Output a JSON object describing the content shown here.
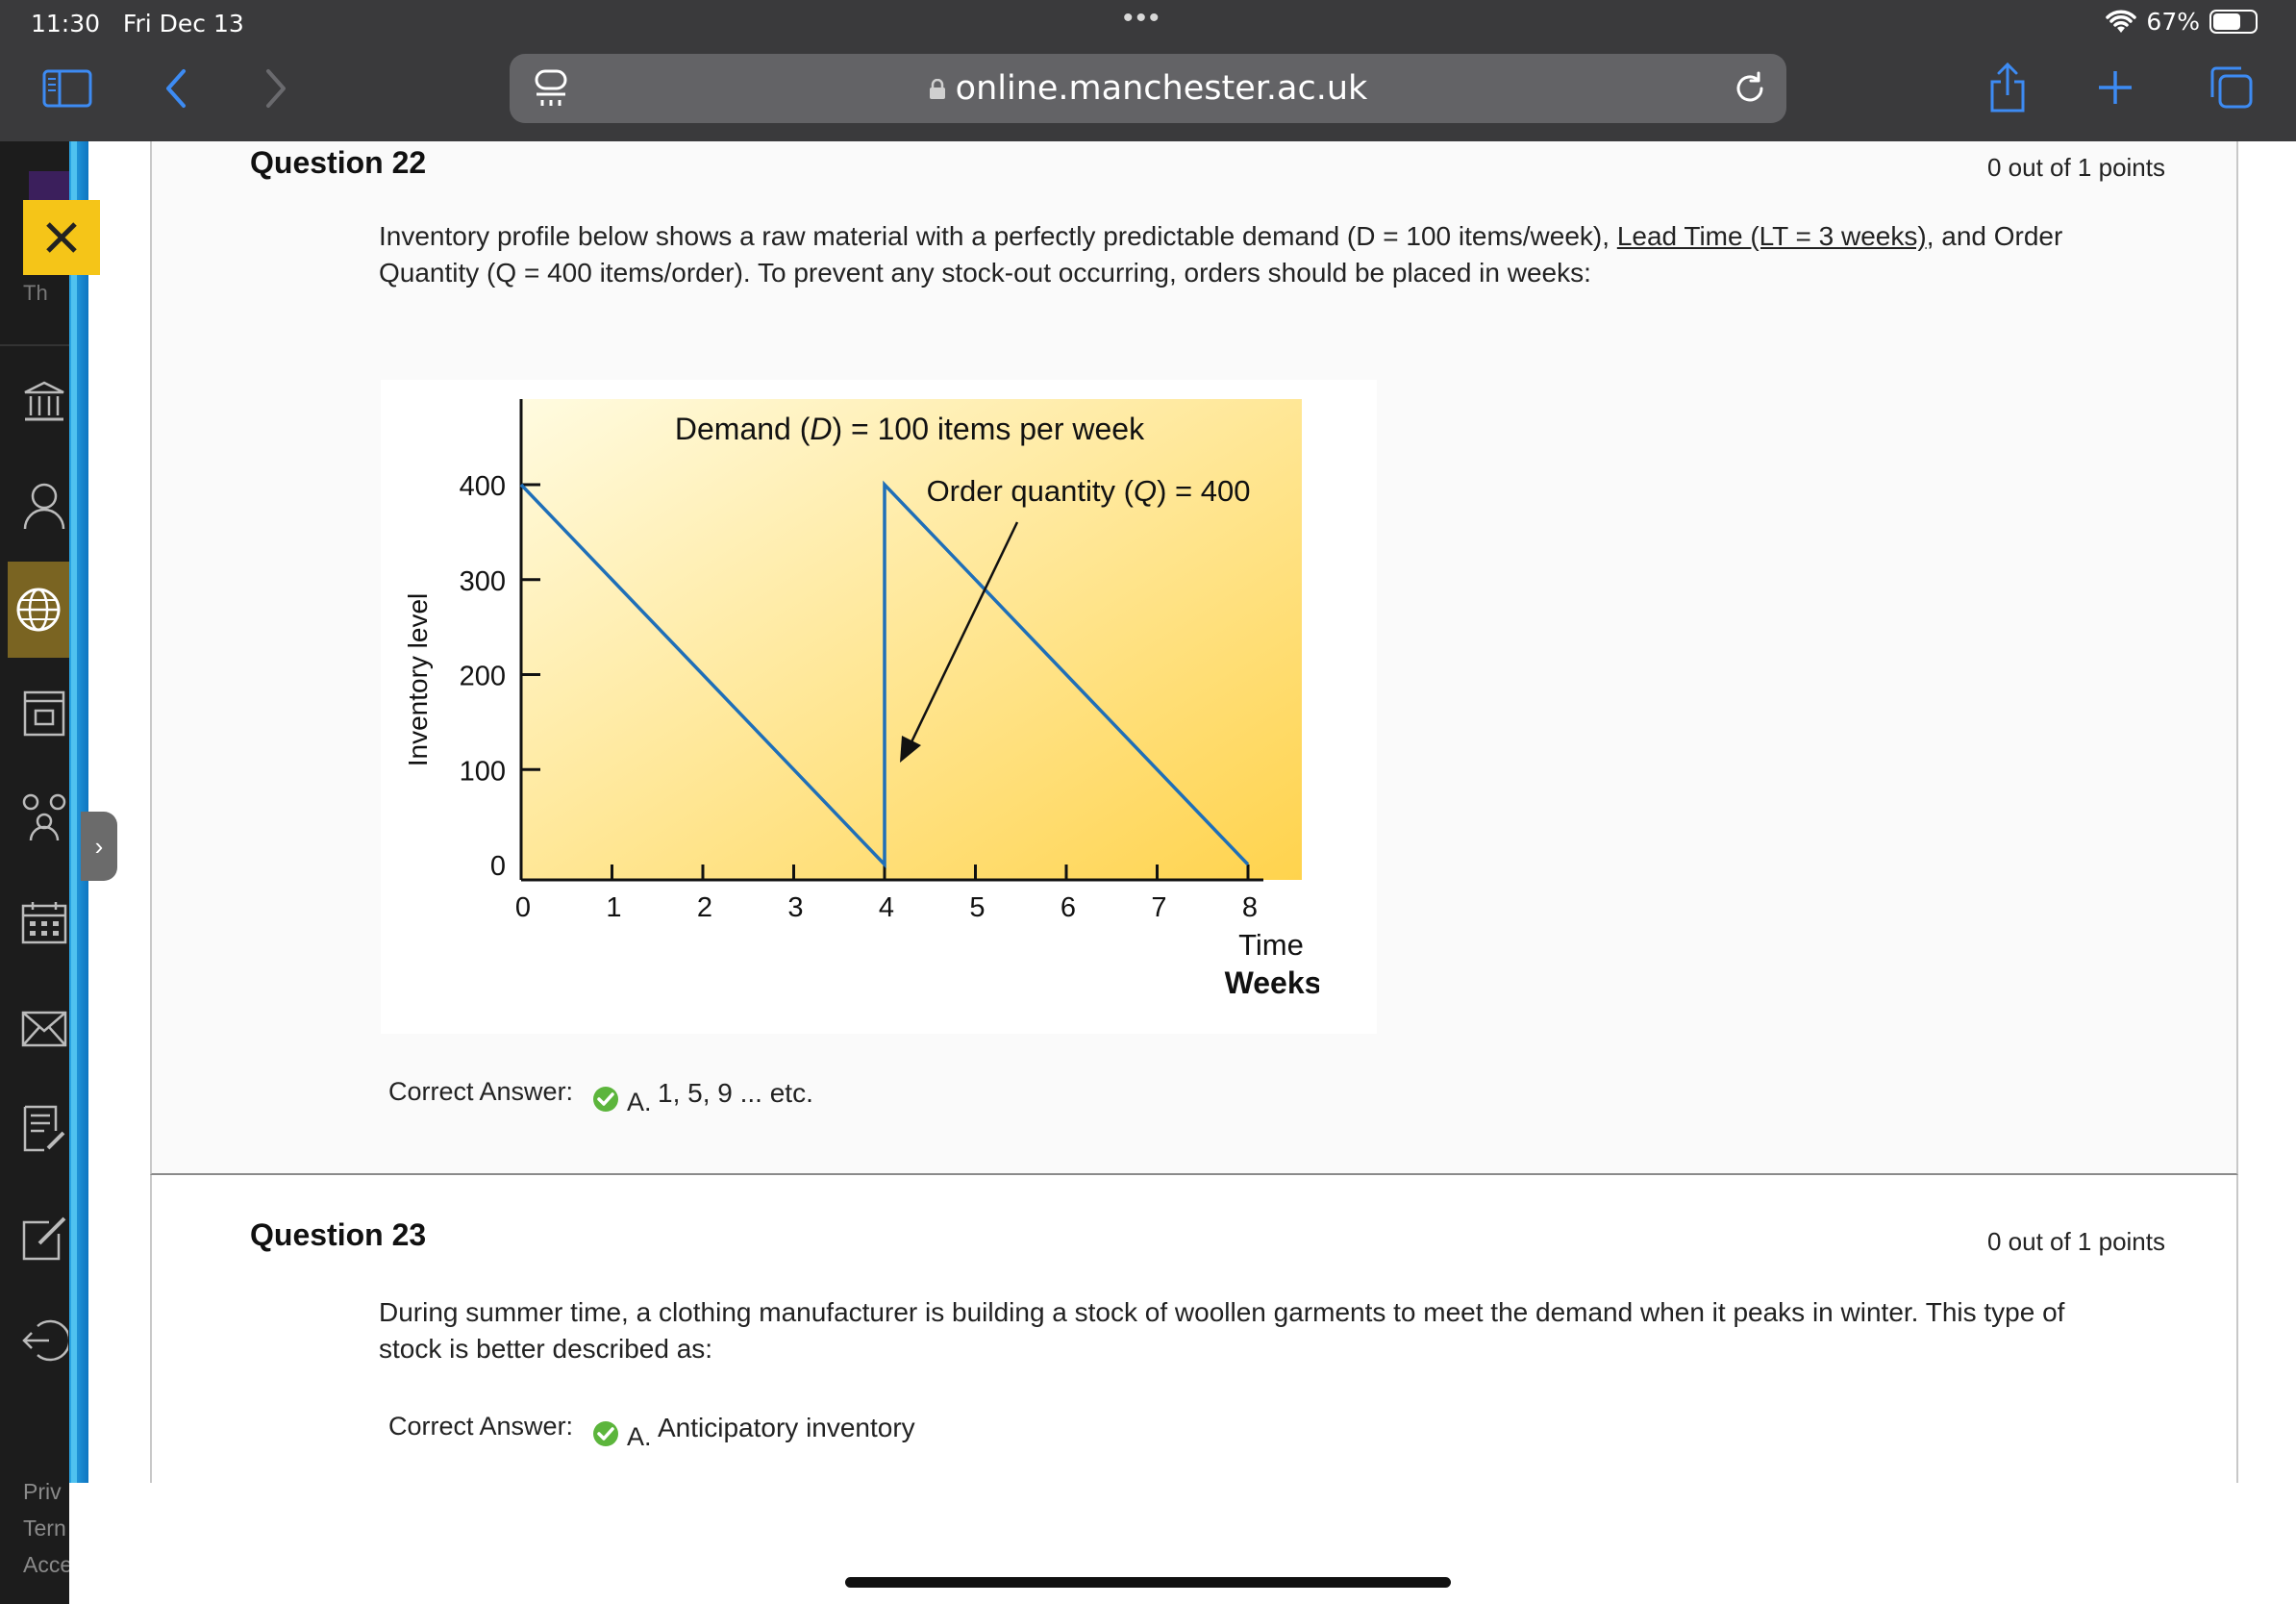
{
  "status_bar": {
    "time": "11:30",
    "date": "Fri Dec 13",
    "battery": "67%",
    "battery_level": 0.67
  },
  "browser": {
    "url": "online.manchester.ac.uk"
  },
  "left_nav": {
    "partial_labels": [
      "Priv",
      "Tern",
      "Acce"
    ],
    "title_fragment": "Th"
  },
  "questions": [
    {
      "title": "Question 22",
      "points": "0 out of 1 points",
      "text_before": "Inventory profile below shows a raw material with a perfectly predictable demand (D = 100 items/week), ",
      "text_underlined": "Lead Time (LT = 3 weeks)",
      "text_after": ", and Order Quantity (Q = 400 items/order). To prevent any stock-out occurring, orders should be placed in weeks:",
      "answer_label": "Correct Answer:",
      "answer_letter": "A.",
      "answer_text": "1, 5, 9 ... etc."
    },
    {
      "title": "Question 23",
      "points": "0 out of 1 points",
      "text": "During summer time, a clothing manufacturer is building a stock of woollen garments to meet the demand when it peaks in winter. This type of stock is better described as:",
      "answer_label": "Correct Answer:",
      "answer_letter": "A.",
      "answer_text": "Anticipatory inventory"
    }
  ],
  "chart_data": {
    "type": "line",
    "title_parts": [
      "Demand (",
      "D",
      ") = 100 items per week"
    ],
    "annotation_parts": [
      "Order quantity (",
      "Q",
      ") = 400"
    ],
    "ylabel": "Inventory level",
    "xlabel": "Time",
    "xlabel2": "Weeks",
    "xlim": [
      0,
      8
    ],
    "ylim": [
      0,
      400
    ],
    "x_ticks": [
      "0",
      "1",
      "2",
      "3",
      "4",
      "5",
      "6",
      "7",
      "8"
    ],
    "y_ticks": [
      "0",
      "100",
      "200",
      "300",
      "400"
    ],
    "series": [
      {
        "x": [
          0,
          4,
          4,
          8
        ],
        "y": [
          400,
          0,
          400,
          0
        ]
      }
    ],
    "colors": {
      "line": "#1f6fb8",
      "bg_light": "#fffbe0",
      "bg_dark": "#ffd34d"
    },
    "grid": false
  }
}
